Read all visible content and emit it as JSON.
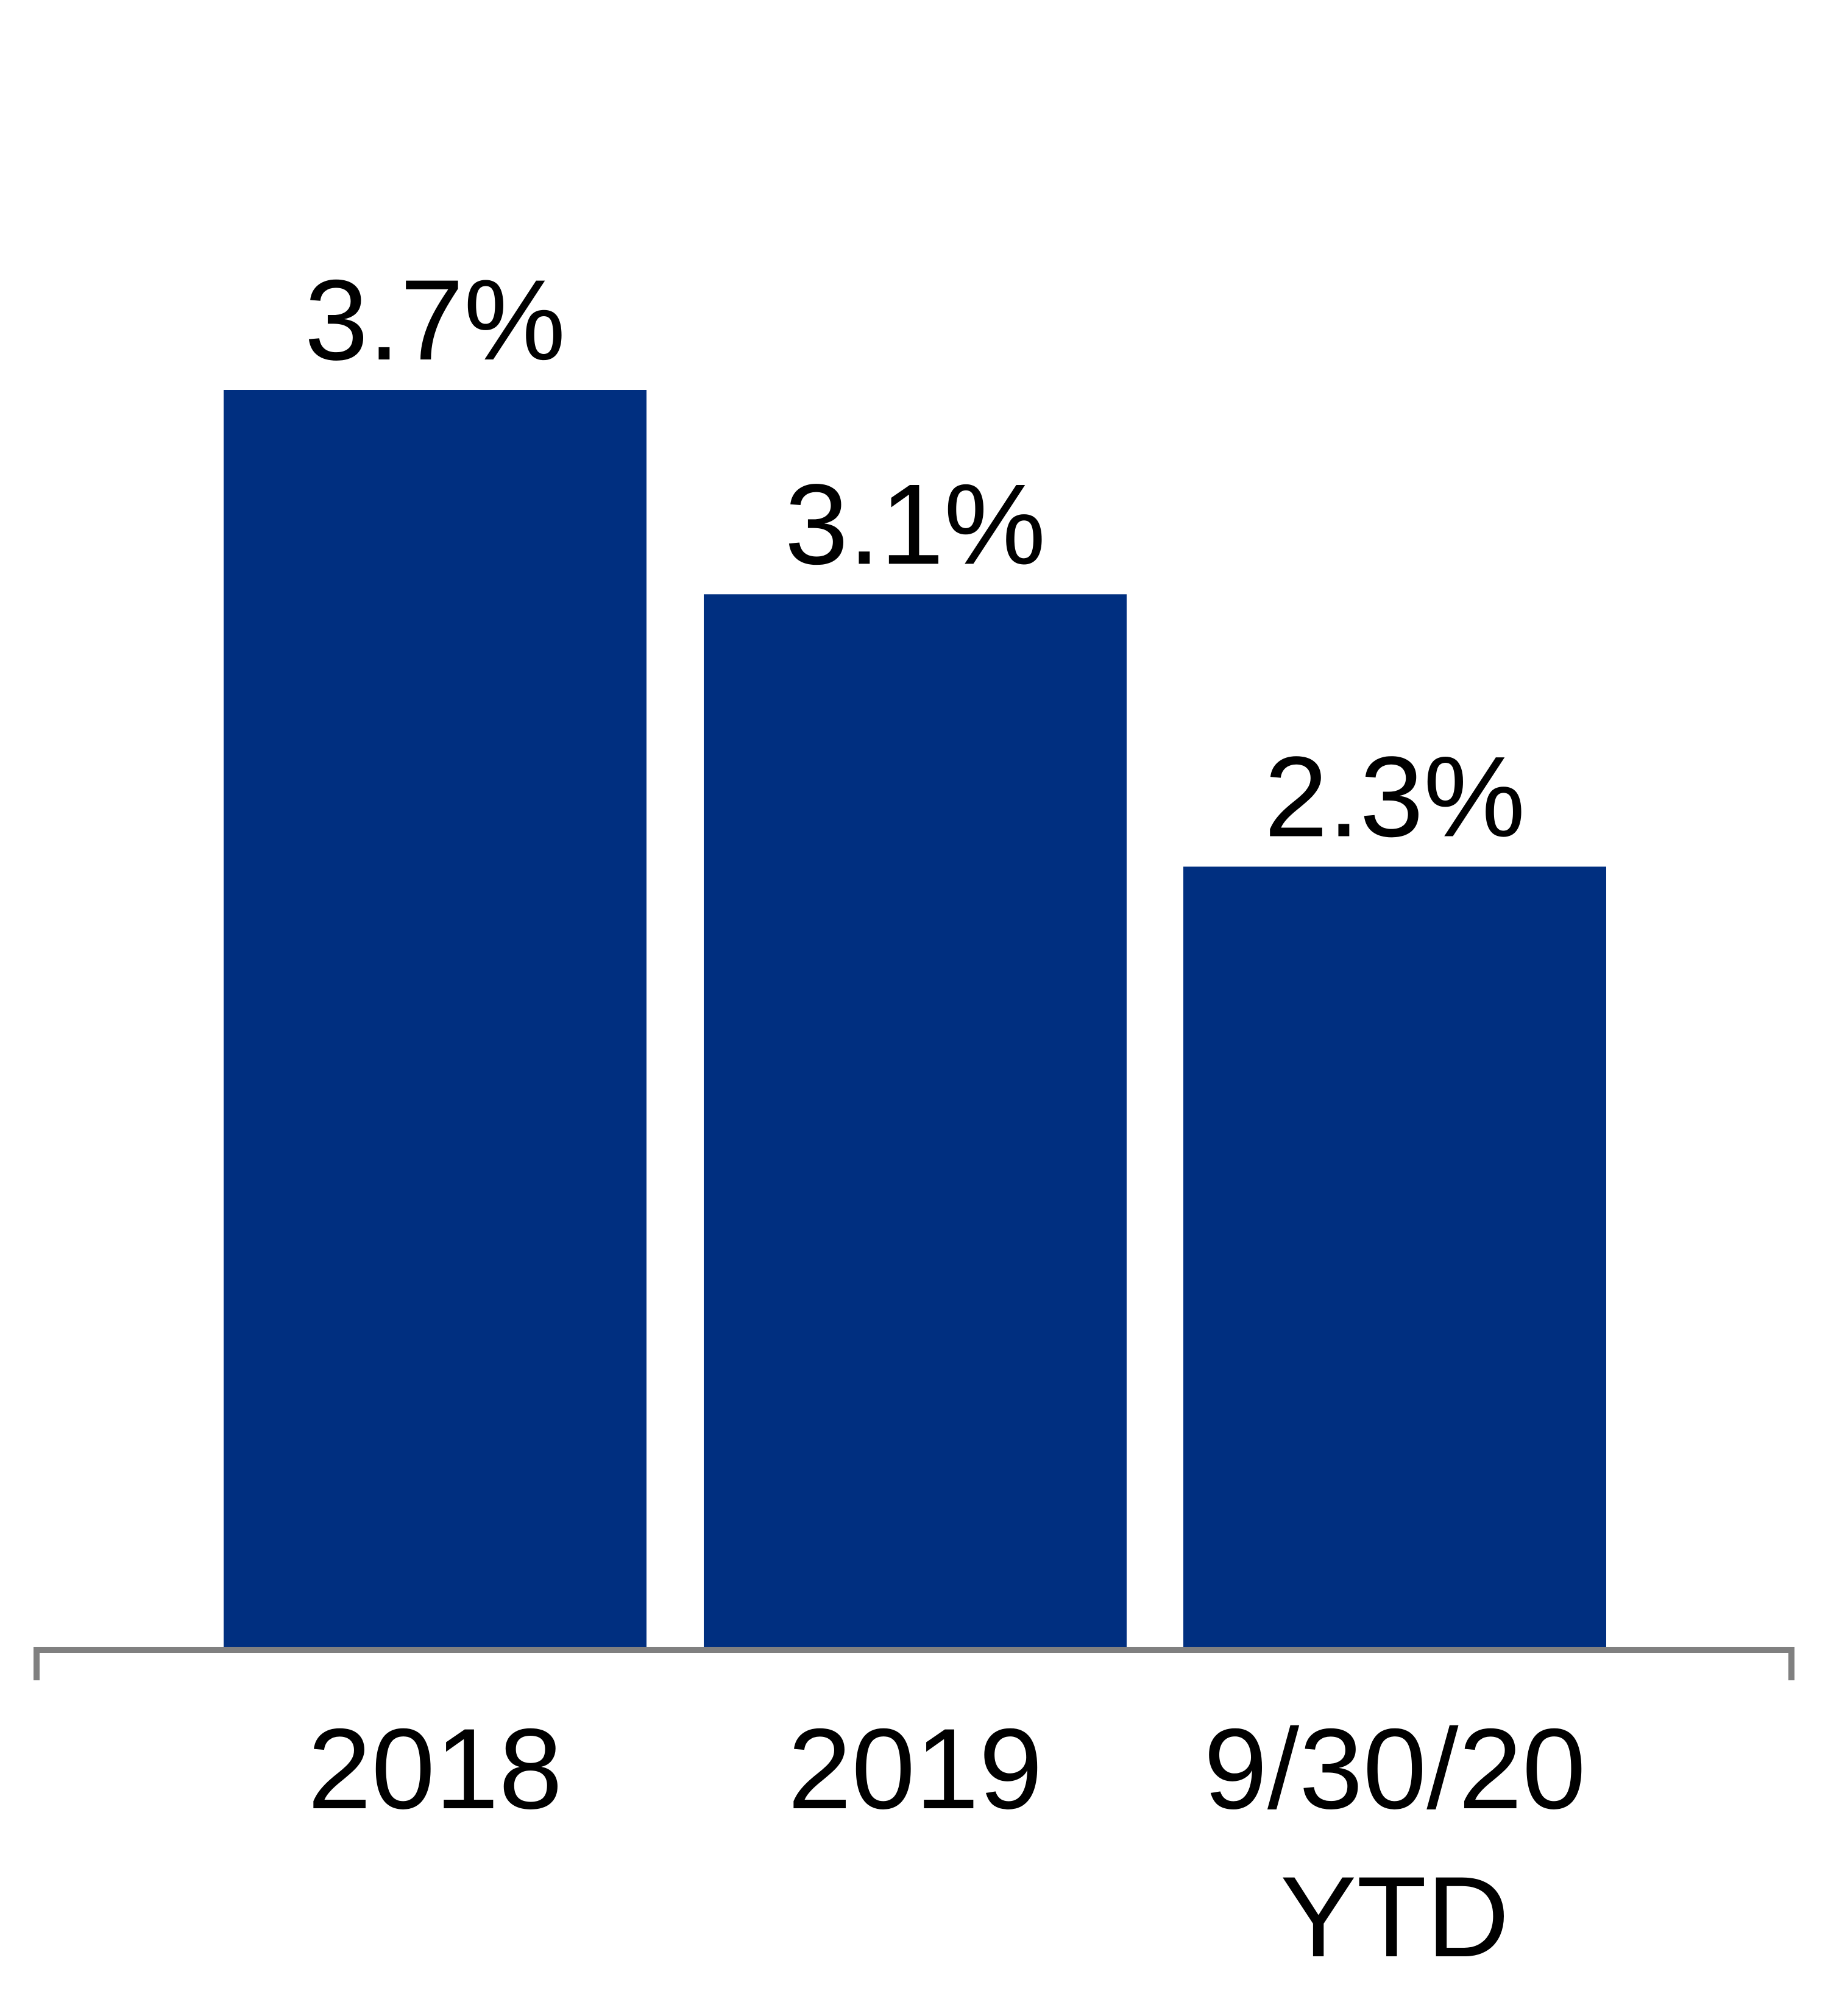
{
  "chart_data": {
    "type": "bar",
    "title": "",
    "xlabel": "",
    "ylabel": "",
    "categories": [
      [
        "2018"
      ],
      [
        "2019"
      ],
      [
        "9/30/20",
        "YTD"
      ]
    ],
    "values": [
      3.7,
      3.1,
      2.3
    ],
    "data_labels": [
      "3.7%",
      "3.1%",
      "2.3%"
    ],
    "ylim": [
      0,
      3.7
    ],
    "grid": false,
    "legend": "none",
    "colors": {
      "bar": "#002f80",
      "axis": "#808080",
      "text": "#000000"
    }
  }
}
